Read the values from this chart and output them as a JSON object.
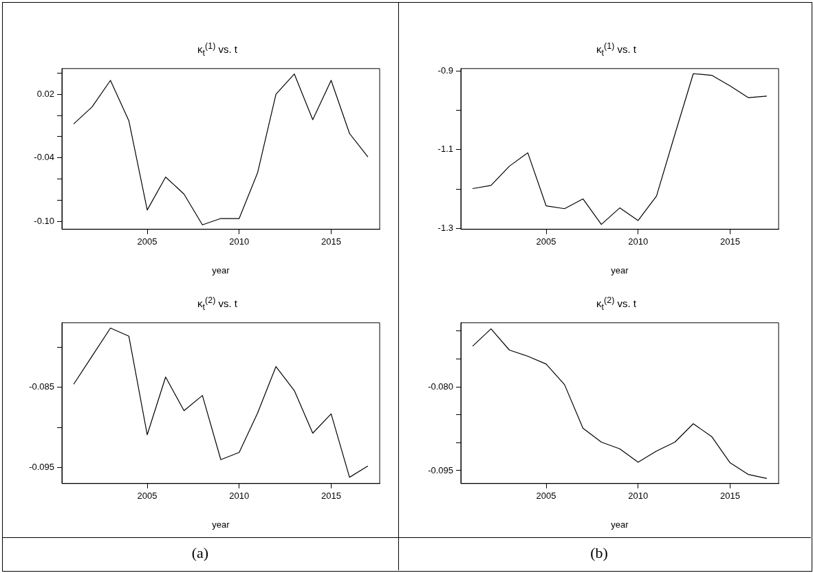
{
  "chart_data": [
    {
      "type": "line",
      "title": "κ$_{t}$$^{(1)}$ vs. t",
      "xlabel": "year",
      "x": [
        2001,
        2002,
        2003,
        2004,
        2005,
        2006,
        2007,
        2008,
        2009,
        2010,
        2011,
        2012,
        2013,
        2014,
        2015,
        2016,
        2017
      ],
      "series": [
        {
          "color": "#000000",
          "values": [
            -0.008,
            0.008,
            0.033,
            -0.005,
            -0.089,
            -0.058,
            -0.074,
            -0.103,
            -0.097,
            -0.097,
            -0.054,
            0.02,
            0.039,
            -0.004,
            0.033,
            -0.017,
            -0.039
          ]
        }
      ],
      "xlim": [
        2000.36,
        2017.64
      ],
      "xticks": [
        2005,
        2010,
        2015
      ],
      "ylim": [
        -0.1072,
        0.0441
      ],
      "yticks": [
        {
          "value": -0.1,
          "label": "-0.10"
        },
        {
          "value": -0.08,
          "label": null
        },
        {
          "value": -0.06,
          "label": null
        },
        -0.04,
        {
          "value": -0.02,
          "label": null
        },
        {
          "value": 0,
          "label": null
        },
        0.02,
        {
          "value": 0.04,
          "label": null
        }
      ],
      "marker": "none",
      "line_style": "solid"
    },
    {
      "type": "line",
      "title": "κ$_{t}$$^{(1)}$ vs. t",
      "xlabel": "year",
      "x": [
        2001,
        2002,
        2003,
        2004,
        2005,
        2006,
        2007,
        2008,
        2009,
        2010,
        2011,
        2012,
        2013,
        2014,
        2015,
        2016,
        2017
      ],
      "series": [
        {
          "color": "#000000",
          "values": [
            -1.199,
            -1.191,
            -1.142,
            -1.108,
            -1.243,
            -1.25,
            -1.225,
            -1.29,
            -1.248,
            -1.28,
            -1.218,
            -1.061,
            -0.907,
            -0.911,
            -0.938,
            -0.968,
            -0.964
          ]
        }
      ],
      "xlim": [
        2000.36,
        2017.64
      ],
      "xticks": [
        2005,
        2010,
        2015
      ],
      "ylim": [
        -1.3025,
        -0.894
      ],
      "yticks": [
        -1.3,
        {
          "value": -1.2,
          "label": null
        },
        -1.1,
        {
          "value": -1.0,
          "label": null
        },
        -0.9
      ],
      "marker": "none",
      "line_style": "solid"
    },
    {
      "type": "line",
      "title": "κ$_{t}$$^{(2)}$ vs. t",
      "xlabel": "year",
      "annotations": [
        "(a)"
      ],
      "x": [
        2001,
        2002,
        2003,
        2004,
        2005,
        2006,
        2007,
        2008,
        2009,
        2010,
        2011,
        2012,
        2013,
        2014,
        2015,
        2016,
        2017
      ],
      "series": [
        {
          "color": "#000000",
          "values": [
            -0.0846,
            -0.0811,
            -0.0776,
            -0.0786,
            -0.0909,
            -0.0837,
            -0.0879,
            -0.086,
            -0.094,
            -0.0931,
            -0.0882,
            -0.0824,
            -0.0854,
            -0.0907,
            -0.0883,
            -0.0962,
            -0.0948
          ]
        }
      ],
      "xlim": [
        2000.36,
        2017.64
      ],
      "xticks": [
        2005,
        2010,
        2015
      ],
      "ylim": [
        -0.09698,
        -0.07694
      ],
      "yticks": [
        -0.095,
        {
          "value": -0.09,
          "label": null
        },
        -0.085,
        {
          "value": -0.08,
          "label": null
        }
      ],
      "marker": "none",
      "line_style": "solid"
    },
    {
      "type": "line",
      "title": "κ$_{t}$$^{(2)}$ vs. t",
      "xlabel": "year",
      "annotations": [
        "(b)"
      ],
      "x": [
        2001,
        2002,
        2003,
        2004,
        2005,
        2006,
        2007,
        2008,
        2009,
        2010,
        2011,
        2012,
        2013,
        2014,
        2015,
        2016,
        2017
      ],
      "series": [
        {
          "color": "#000000",
          "values": [
            -0.0727,
            -0.0696,
            -0.0734,
            -0.0745,
            -0.0759,
            -0.0796,
            -0.0874,
            -0.0899,
            -0.0911,
            -0.0935,
            -0.0915,
            -0.0899,
            -0.0866,
            -0.0889,
            -0.0936,
            -0.0957,
            -0.0964
          ]
        }
      ],
      "xlim": [
        2000.36,
        2017.64
      ],
      "xticks": [
        2005,
        2010,
        2015
      ],
      "ylim": [
        -0.09732,
        -0.06851
      ],
      "yticks": [
        -0.095,
        {
          "value": -0.09,
          "label": null
        },
        {
          "value": -0.085,
          "label": null
        },
        {
          "value": -0.08,
          "label": "-0.080"
        },
        {
          "value": -0.075,
          "label": null
        },
        {
          "value": -0.07,
          "label": null
        }
      ],
      "marker": "none",
      "line_style": "solid"
    }
  ]
}
